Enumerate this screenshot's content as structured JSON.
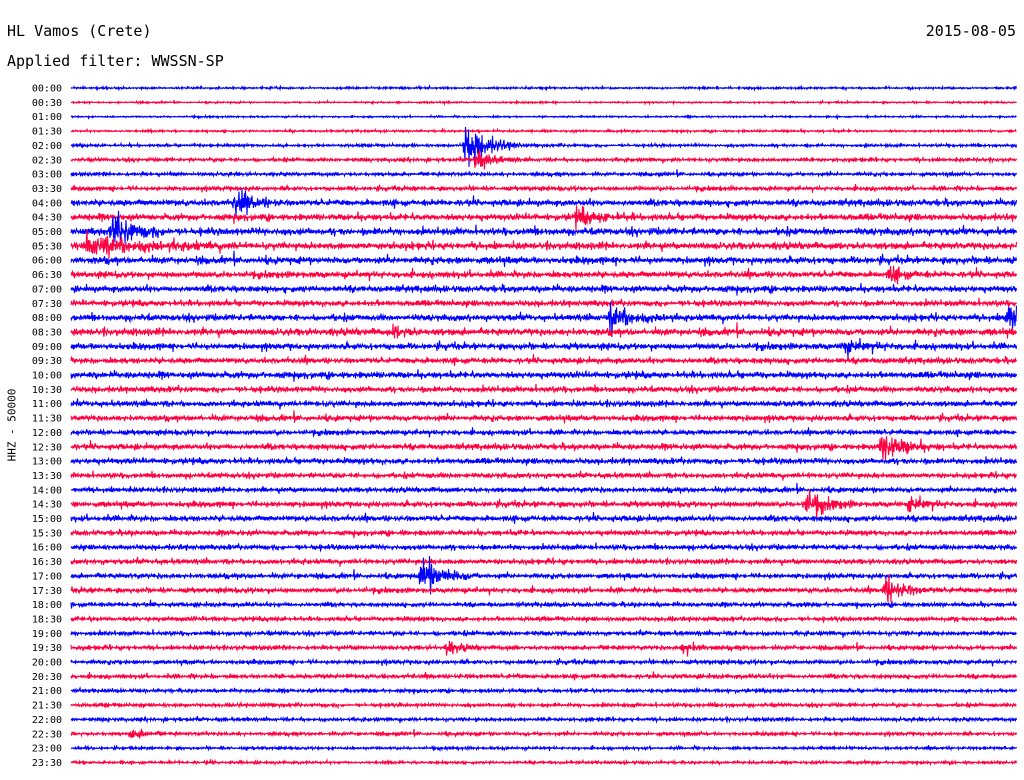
{
  "header": {
    "station": "HL Vamos (Crete)",
    "date": "2015-08-05",
    "filter": "Applied filter: WWSSN-SP"
  },
  "chart_data": {
    "type": "line",
    "title": "HL Vamos (Crete)",
    "date": "2015-08-05",
    "filter": "WWSSN-SP",
    "ylabel": "HHZ - 50000",
    "xlabel": "",
    "grid": false,
    "colors": [
      "#0000ff",
      "#ff0040"
    ],
    "rows": [
      "00:00",
      "00:30",
      "01:00",
      "01:30",
      "02:00",
      "02:30",
      "03:00",
      "03:30",
      "04:00",
      "04:30",
      "05:00",
      "05:30",
      "06:00",
      "06:30",
      "07:00",
      "07:30",
      "08:00",
      "08:30",
      "09:00",
      "09:30",
      "10:00",
      "10:30",
      "11:00",
      "11:30",
      "12:00",
      "12:30",
      "13:00",
      "13:30",
      "14:00",
      "14:30",
      "15:00",
      "15:30",
      "16:00",
      "16:30",
      "17:00",
      "17:30",
      "18:00",
      "18:30",
      "19:00",
      "19:30",
      "20:00",
      "20:30",
      "21:00",
      "21:30",
      "22:00",
      "22:30",
      "23:00",
      "23:30"
    ],
    "row_minutes": 30,
    "noise_level": [
      0.15,
      0.12,
      0.12,
      0.15,
      0.2,
      0.25,
      0.25,
      0.3,
      0.45,
      0.45,
      0.5,
      0.5,
      0.5,
      0.45,
      0.45,
      0.4,
      0.45,
      0.5,
      0.45,
      0.4,
      0.45,
      0.4,
      0.4,
      0.4,
      0.35,
      0.4,
      0.4,
      0.35,
      0.35,
      0.4,
      0.4,
      0.35,
      0.35,
      0.35,
      0.35,
      0.35,
      0.3,
      0.3,
      0.3,
      0.3,
      0.3,
      0.3,
      0.25,
      0.25,
      0.25,
      0.25,
      0.2,
      0.2
    ],
    "events": [
      {
        "row": "02:00",
        "minute": 12.5,
        "amplitude": 4.0,
        "duration": 1.8
      },
      {
        "row": "02:30",
        "minute": 12.8,
        "amplitude": 2.0,
        "duration": 1.4
      },
      {
        "row": "04:00",
        "minute": 5.2,
        "amplitude": 2.0,
        "duration": 1.5
      },
      {
        "row": "04:30",
        "minute": 16.0,
        "amplitude": 1.2,
        "duration": 2.0
      },
      {
        "row": "05:00",
        "minute": 1.3,
        "amplitude": 2.5,
        "duration": 2.0
      },
      {
        "row": "05:30",
        "minute": 0.5,
        "amplitude": 1.6,
        "duration": 5.0
      },
      {
        "row": "06:30",
        "minute": 26.0,
        "amplitude": 1.4,
        "duration": 1.2
      },
      {
        "row": "08:00",
        "minute": 17.1,
        "amplitude": 2.2,
        "duration": 2.0
      },
      {
        "row": "08:00",
        "minute": 29.7,
        "amplitude": 3.5,
        "duration": 1.0
      },
      {
        "row": "08:30",
        "minute": 10.2,
        "amplitude": 1.0,
        "duration": 1.0
      },
      {
        "row": "09:00",
        "minute": 24.5,
        "amplitude": 1.0,
        "duration": 2.0
      },
      {
        "row": "12:30",
        "minute": 25.7,
        "amplitude": 2.2,
        "duration": 2.0
      },
      {
        "row": "14:30",
        "minute": 23.3,
        "amplitude": 2.0,
        "duration": 1.6
      },
      {
        "row": "14:30",
        "minute": 26.6,
        "amplitude": 1.2,
        "duration": 1.4
      },
      {
        "row": "17:00",
        "minute": 11.1,
        "amplitude": 3.2,
        "duration": 1.8
      },
      {
        "row": "17:30",
        "minute": 25.8,
        "amplitude": 2.2,
        "duration": 1.6
      },
      {
        "row": "19:30",
        "minute": 11.9,
        "amplitude": 1.0,
        "duration": 1.2
      },
      {
        "row": "19:30",
        "minute": 19.4,
        "amplitude": 1.3,
        "duration": 1.0
      },
      {
        "row": "22:30",
        "minute": 1.9,
        "amplitude": 0.9,
        "duration": 1.0
      }
    ]
  }
}
